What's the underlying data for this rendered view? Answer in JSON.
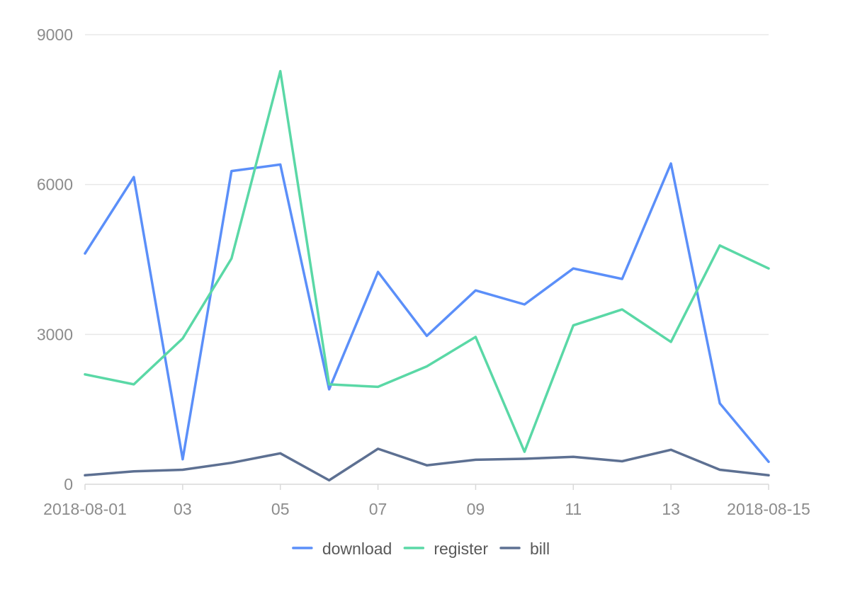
{
  "chart_data": {
    "type": "line",
    "x": [
      "2018-08-01",
      "2018-08-02",
      "2018-08-03",
      "2018-08-04",
      "2018-08-05",
      "2018-08-06",
      "2018-08-07",
      "2018-08-08",
      "2018-08-09",
      "2018-08-10",
      "2018-08-11",
      "2018-08-12",
      "2018-08-13",
      "2018-08-14",
      "2018-08-15"
    ],
    "x_tick_labels": [
      {
        "index": 0,
        "label": "2018-08-01"
      },
      {
        "index": 2,
        "label": "03"
      },
      {
        "index": 4,
        "label": "05"
      },
      {
        "index": 6,
        "label": "07"
      },
      {
        "index": 8,
        "label": "09"
      },
      {
        "index": 10,
        "label": "11"
      },
      {
        "index": 12,
        "label": "13"
      },
      {
        "index": 14,
        "label": "2018-08-15"
      }
    ],
    "y_ticks": [
      0,
      3000,
      6000,
      9000
    ],
    "ylim": [
      0,
      9000
    ],
    "grid": true,
    "legend_position": "bottom",
    "series": [
      {
        "name": "download",
        "color": "#5B8FF9",
        "values": [
          4620,
          6150,
          500,
          6270,
          6400,
          1900,
          4250,
          2970,
          3880,
          3600,
          4320,
          4110,
          6420,
          1620,
          450
        ]
      },
      {
        "name": "register",
        "color": "#5AD8A6",
        "values": [
          2200,
          2000,
          2920,
          4520,
          8270,
          2000,
          1950,
          2360,
          2950,
          650,
          3180,
          3500,
          2850,
          4780,
          4320
        ]
      },
      {
        "name": "bill",
        "color": "#5D7092",
        "values": [
          180,
          260,
          290,
          430,
          620,
          80,
          710,
          380,
          490,
          510,
          550,
          460,
          690,
          290,
          180
        ]
      }
    ]
  }
}
